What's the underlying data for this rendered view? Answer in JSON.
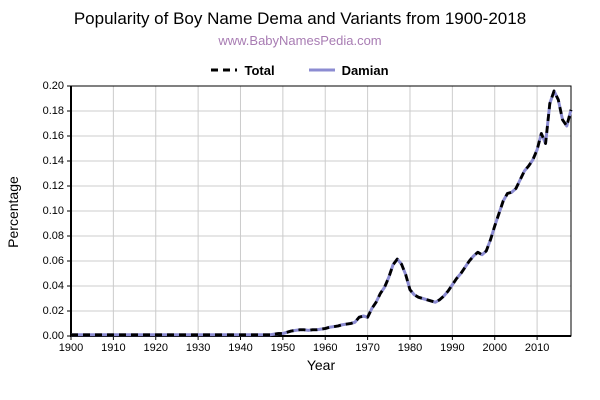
{
  "header": {
    "title": "Popularity of Boy Name Dema and Variants from 1900-2018",
    "subtitle": "www.BabyNamesPedia.com",
    "subtitle_color": "#a87cb3"
  },
  "legend": {
    "position": "top-center",
    "items": [
      {
        "label": "Total",
        "color": "#000000",
        "style": "dashed"
      },
      {
        "label": "Damian",
        "color": "#8c8cd2",
        "style": "solid"
      }
    ]
  },
  "colors": {
    "grid": "#cccccc",
    "axis": "#000000",
    "total_line": "#000000",
    "damian_line": "#8c8cd2"
  },
  "chart_data": {
    "type": "line",
    "title": "Popularity of Boy Name Dema and Variants from 1900-2018",
    "xlabel": "Year",
    "ylabel": "Percentage",
    "xlim": [
      1900,
      2018
    ],
    "ylim": [
      0.0,
      0.2
    ],
    "grid": true,
    "legend_position": "top",
    "x_ticks": [
      1900,
      1910,
      1920,
      1930,
      1940,
      1950,
      1960,
      1970,
      1980,
      1990,
      2000,
      2010
    ],
    "y_ticks": [
      "0.00",
      "0.02",
      "0.04",
      "0.06",
      "0.08",
      "0.10",
      "0.12",
      "0.14",
      "0.16",
      "0.18",
      "0.20"
    ],
    "x_start_year": 1900,
    "series": [
      {
        "name": "Total",
        "color": "#000000",
        "style": "dashed",
        "values": [
          0.001,
          0.001,
          0.001,
          0.001,
          0.001,
          0.001,
          0.001,
          0.001,
          0.001,
          0.001,
          0.001,
          0.001,
          0.001,
          0.001,
          0.001,
          0.001,
          0.001,
          0.001,
          0.001,
          0.001,
          0.001,
          0.001,
          0.001,
          0.001,
          0.001,
          0.001,
          0.001,
          0.001,
          0.001,
          0.001,
          0.001,
          0.001,
          0.001,
          0.001,
          0.001,
          0.001,
          0.001,
          0.001,
          0.001,
          0.001,
          0.001,
          0.001,
          0.001,
          0.001,
          0.001,
          0.001,
          0.001,
          0.001,
          0.0015,
          0.002,
          0.002,
          0.003,
          0.004,
          0.0045,
          0.005,
          0.005,
          0.0045,
          0.005,
          0.005,
          0.0055,
          0.006,
          0.007,
          0.0075,
          0.008,
          0.009,
          0.0095,
          0.01,
          0.011,
          0.015,
          0.016,
          0.015,
          0.022,
          0.027,
          0.034,
          0.039,
          0.047,
          0.057,
          0.0615,
          0.0575,
          0.049,
          0.037,
          0.033,
          0.031,
          0.03,
          0.029,
          0.028,
          0.027,
          0.029,
          0.032,
          0.036,
          0.041,
          0.046,
          0.05,
          0.055,
          0.06,
          0.064,
          0.067,
          0.065,
          0.068,
          0.077,
          0.088,
          0.098,
          0.108,
          0.114,
          0.115,
          0.118,
          0.125,
          0.132,
          0.136,
          0.141,
          0.149,
          0.162,
          0.154,
          0.186,
          0.196,
          0.189,
          0.173,
          0.168,
          0.181
        ]
      },
      {
        "name": "Damian",
        "color": "#8c8cd2",
        "style": "solid",
        "values": [
          0.001,
          0.001,
          0.001,
          0.001,
          0.001,
          0.001,
          0.001,
          0.001,
          0.001,
          0.001,
          0.001,
          0.001,
          0.001,
          0.001,
          0.001,
          0.001,
          0.001,
          0.001,
          0.001,
          0.001,
          0.001,
          0.001,
          0.001,
          0.001,
          0.001,
          0.001,
          0.001,
          0.001,
          0.001,
          0.001,
          0.001,
          0.001,
          0.001,
          0.001,
          0.001,
          0.001,
          0.001,
          0.001,
          0.001,
          0.001,
          0.001,
          0.001,
          0.001,
          0.001,
          0.001,
          0.001,
          0.001,
          0.001,
          0.0015,
          0.002,
          0.002,
          0.003,
          0.004,
          0.0045,
          0.005,
          0.005,
          0.0045,
          0.005,
          0.005,
          0.0055,
          0.006,
          0.007,
          0.0075,
          0.008,
          0.009,
          0.0095,
          0.01,
          0.011,
          0.015,
          0.016,
          0.015,
          0.022,
          0.027,
          0.034,
          0.039,
          0.047,
          0.057,
          0.0615,
          0.0575,
          0.049,
          0.037,
          0.033,
          0.031,
          0.03,
          0.029,
          0.028,
          0.027,
          0.029,
          0.032,
          0.036,
          0.041,
          0.046,
          0.05,
          0.055,
          0.06,
          0.064,
          0.067,
          0.065,
          0.068,
          0.077,
          0.088,
          0.098,
          0.108,
          0.114,
          0.115,
          0.118,
          0.125,
          0.132,
          0.136,
          0.141,
          0.149,
          0.162,
          0.154,
          0.186,
          0.196,
          0.189,
          0.173,
          0.168,
          0.181
        ]
      }
    ]
  }
}
